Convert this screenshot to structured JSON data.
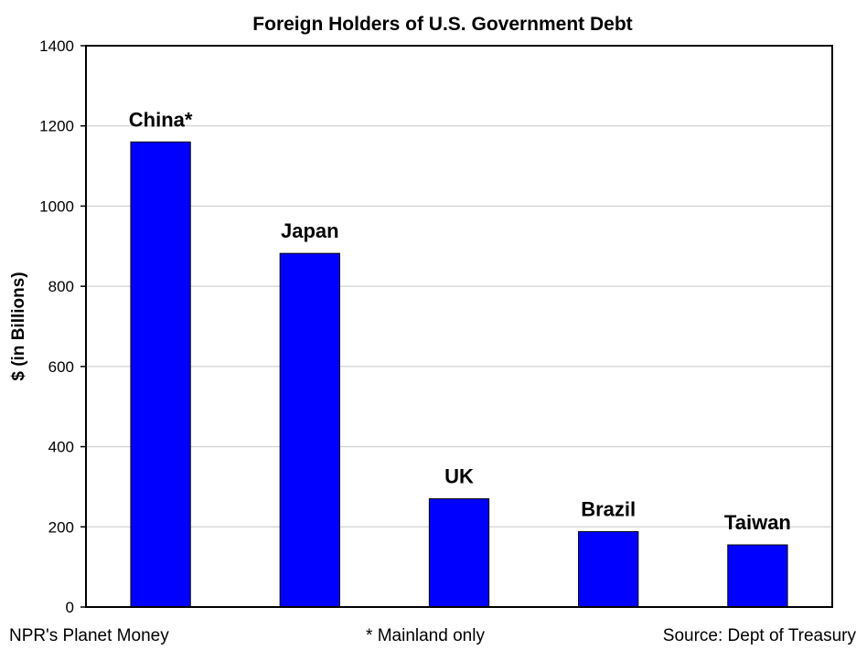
{
  "chart_data": {
    "type": "bar",
    "title": "Foreign Holders of U.S. Government Debt",
    "xlabel": "",
    "ylabel": "$ (in Billions)",
    "ylim": [
      0,
      1400
    ],
    "yticks": [
      "0",
      "200",
      "400",
      "600",
      "800",
      "1000",
      "1200",
      "1400"
    ],
    "grid": true,
    "categories": [
      "China*",
      "Japan",
      "UK",
      "Brazil",
      "Taiwan"
    ],
    "values": [
      1160,
      882,
      270,
      188,
      155
    ],
    "bar_color": "#0000ff"
  },
  "footer": {
    "left": "NPR's Planet Money",
    "center": "* Mainland only",
    "right": "Source: Dept of Treasury"
  }
}
